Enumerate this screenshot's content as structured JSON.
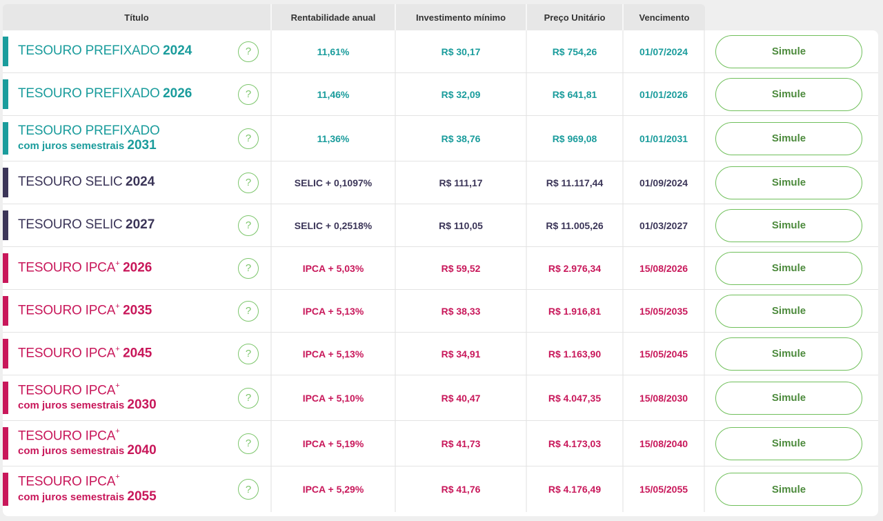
{
  "headers": {
    "titulo": "Título",
    "rentabilidade": "Rentabilidade anual",
    "investimento": "Investimento mínimo",
    "preco": "Preço Unitário",
    "vencimento": "Vencimento"
  },
  "button_label": "Simule",
  "help_symbol": "?",
  "colors": {
    "prefixado": "#1a9c9c",
    "selic": "#3b3558",
    "ipca": "#c8175a",
    "button": "#6fbf5a"
  },
  "rows": [
    {
      "name": "TESOURO PREFIXADO",
      "sup": "",
      "sub": "",
      "year": "2024",
      "rent": "11,61%",
      "inv": "R$ 30,17",
      "price": "R$ 754,26",
      "venc": "01/07/2024",
      "type": "pref"
    },
    {
      "name": "TESOURO PREFIXADO",
      "sup": "",
      "sub": "",
      "year": "2026",
      "rent": "11,46%",
      "inv": "R$ 32,09",
      "price": "R$ 641,81",
      "venc": "01/01/2026",
      "type": "pref"
    },
    {
      "name": "TESOURO PREFIXADO",
      "sup": "",
      "sub": "com juros semestrais",
      "year": "2031",
      "rent": "11,36%",
      "inv": "R$ 38,76",
      "price": "R$ 969,08",
      "venc": "01/01/2031",
      "type": "pref"
    },
    {
      "name": "TESOURO SELIC",
      "sup": "",
      "sub": "",
      "year": "2024",
      "rent": "SELIC + 0,1097%",
      "inv": "R$ 111,17",
      "price": "R$ 11.117,44",
      "venc": "01/09/2024",
      "type": "selic"
    },
    {
      "name": "TESOURO SELIC",
      "sup": "",
      "sub": "",
      "year": "2027",
      "rent": "SELIC + 0,2518%",
      "inv": "R$ 110,05",
      "price": "R$ 11.005,26",
      "venc": "01/03/2027",
      "type": "selic"
    },
    {
      "name": "TESOURO IPCA",
      "sup": "+",
      "sub": "",
      "year": "2026",
      "rent": "IPCA + 5,03%",
      "inv": "R$ 59,52",
      "price": "R$ 2.976,34",
      "venc": "15/08/2026",
      "type": "ipca"
    },
    {
      "name": "TESOURO IPCA",
      "sup": "+",
      "sub": "",
      "year": "2035",
      "rent": "IPCA + 5,13%",
      "inv": "R$ 38,33",
      "price": "R$ 1.916,81",
      "venc": "15/05/2035",
      "type": "ipca"
    },
    {
      "name": "TESOURO IPCA",
      "sup": "+",
      "sub": "",
      "year": "2045",
      "rent": "IPCA + 5,13%",
      "inv": "R$ 34,91",
      "price": "R$ 1.163,90",
      "venc": "15/05/2045",
      "type": "ipca"
    },
    {
      "name": "TESOURO IPCA",
      "sup": "+",
      "sub": "com juros semestrais",
      "year": "2030",
      "rent": "IPCA + 5,10%",
      "inv": "R$ 40,47",
      "price": "R$ 4.047,35",
      "venc": "15/08/2030",
      "type": "ipca"
    },
    {
      "name": "TESOURO IPCA",
      "sup": "+",
      "sub": "com juros semestrais",
      "year": "2040",
      "rent": "IPCA + 5,19%",
      "inv": "R$ 41,73",
      "price": "R$ 4.173,03",
      "venc": "15/08/2040",
      "type": "ipca"
    },
    {
      "name": "TESOURO IPCA",
      "sup": "+",
      "sub": "com juros semestrais",
      "year": "2055",
      "rent": "IPCA + 5,29%",
      "inv": "R$ 41,76",
      "price": "R$ 4.176,49",
      "venc": "15/05/2055",
      "type": "ipca"
    }
  ]
}
